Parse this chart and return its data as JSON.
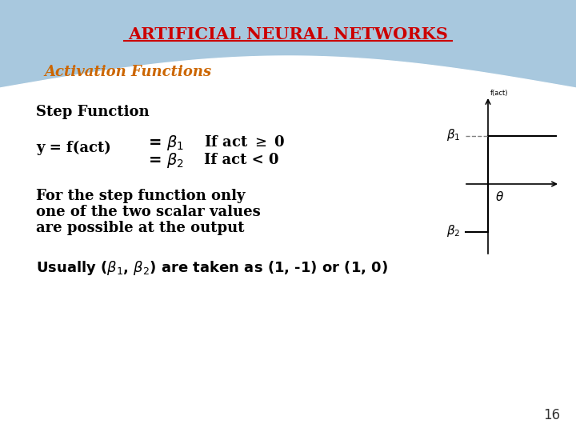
{
  "title": "ARTIFICIAL NEURAL NETWORKS",
  "title_color": "#cc0000",
  "title_underline": true,
  "subtitle": "Activation Functions",
  "subtitle_color": "#cc6600",
  "subtitle_italic": true,
  "bg_top_color": "#7ab0d0",
  "bg_bottom_color": "#ffffff",
  "text_color": "#1a1a2e",
  "page_number": "16",
  "lines": [
    "Step Function",
    "",
    "y = f(act)    = β₁    If act ≥ 0",
    "                    = β₂    If act < 0",
    "",
    "For the step function only",
    "one of the two scalar values",
    "are possible at the output",
    "",
    "Usually (β₁, β₂) are taken as (1, -1) or (1, 0)"
  ]
}
